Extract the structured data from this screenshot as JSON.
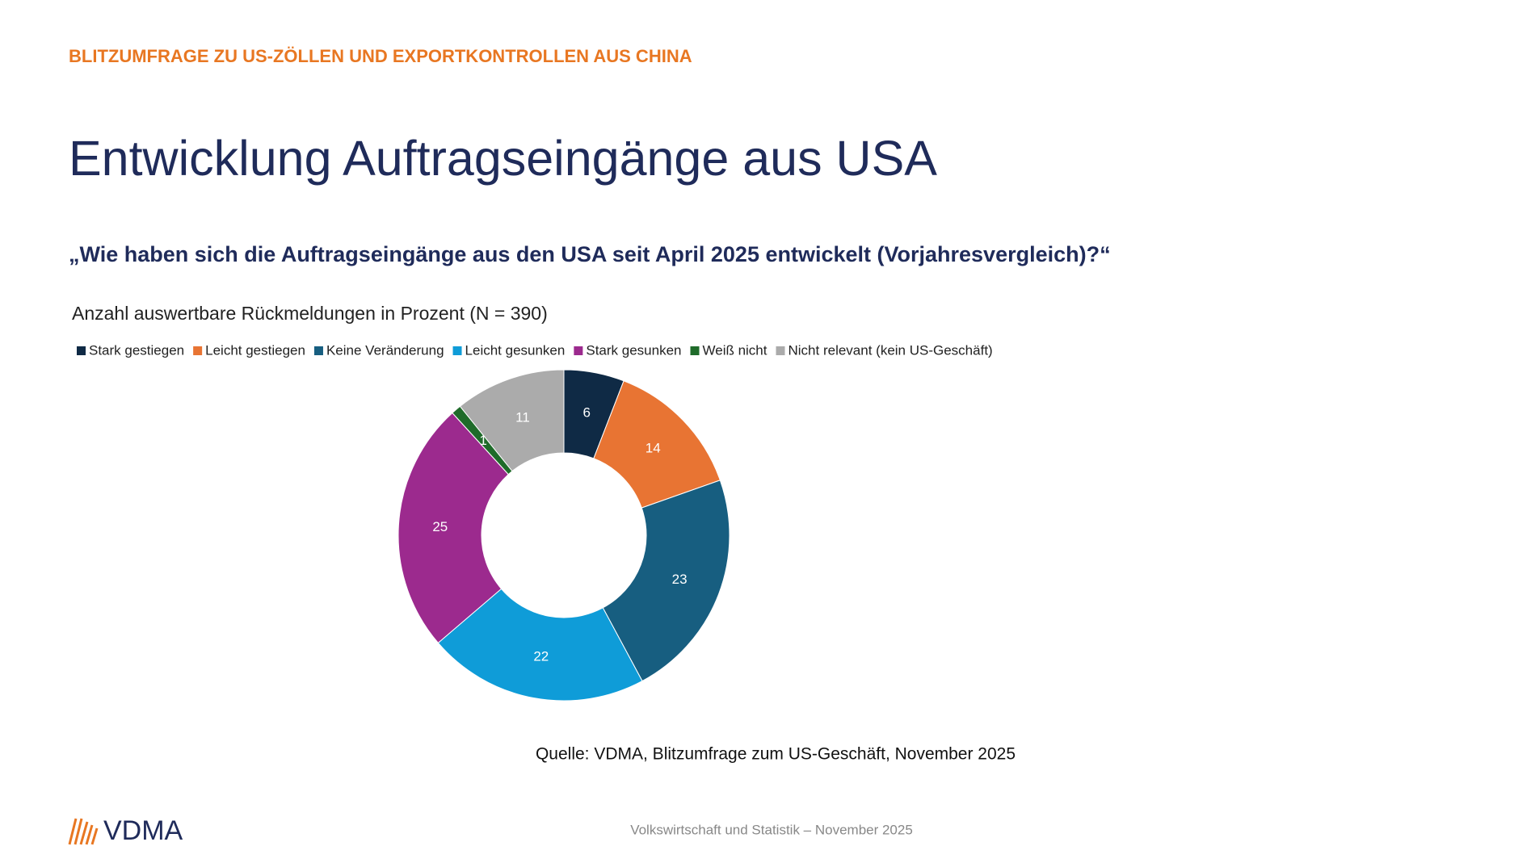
{
  "header": "BLITZUMFRAGE ZU US-ZÖLLEN UND EXPORTKONTROLLEN AUS CHINA",
  "title": "Entwicklung Auftragseingänge aus USA",
  "question": "„Wie haben sich die Auftragseingänge aus den USA seit April 2025 entwickelt (Vorjahresvergleich)?“",
  "chart_data": {
    "type": "donut",
    "title": "Anzahl auswertbare Rückmeldungen in Prozent (N = 390)",
    "categories": [
      "Stark gestiegen",
      "Leicht gestiegen",
      "Keine Veränderung",
      "Leicht gesunken",
      "Stark gesunken",
      "Weiß nicht",
      "Nicht relevant (kein US-Geschäft)"
    ],
    "values": [
      6,
      14,
      23,
      22,
      25,
      1,
      11
    ],
    "colors": [
      "#0f2a45",
      "#e87433",
      "#175e80",
      "#0f9cd8",
      "#9c2a8e",
      "#1f6b2a",
      "#ababab"
    ],
    "legend": "top",
    "source": "Quelle: VDMA, Blitzumfrage zum US-Geschäft, November 2025"
  },
  "footer": "Volkswirtschaft und Statistik – November 2025",
  "logo": "VDMA"
}
